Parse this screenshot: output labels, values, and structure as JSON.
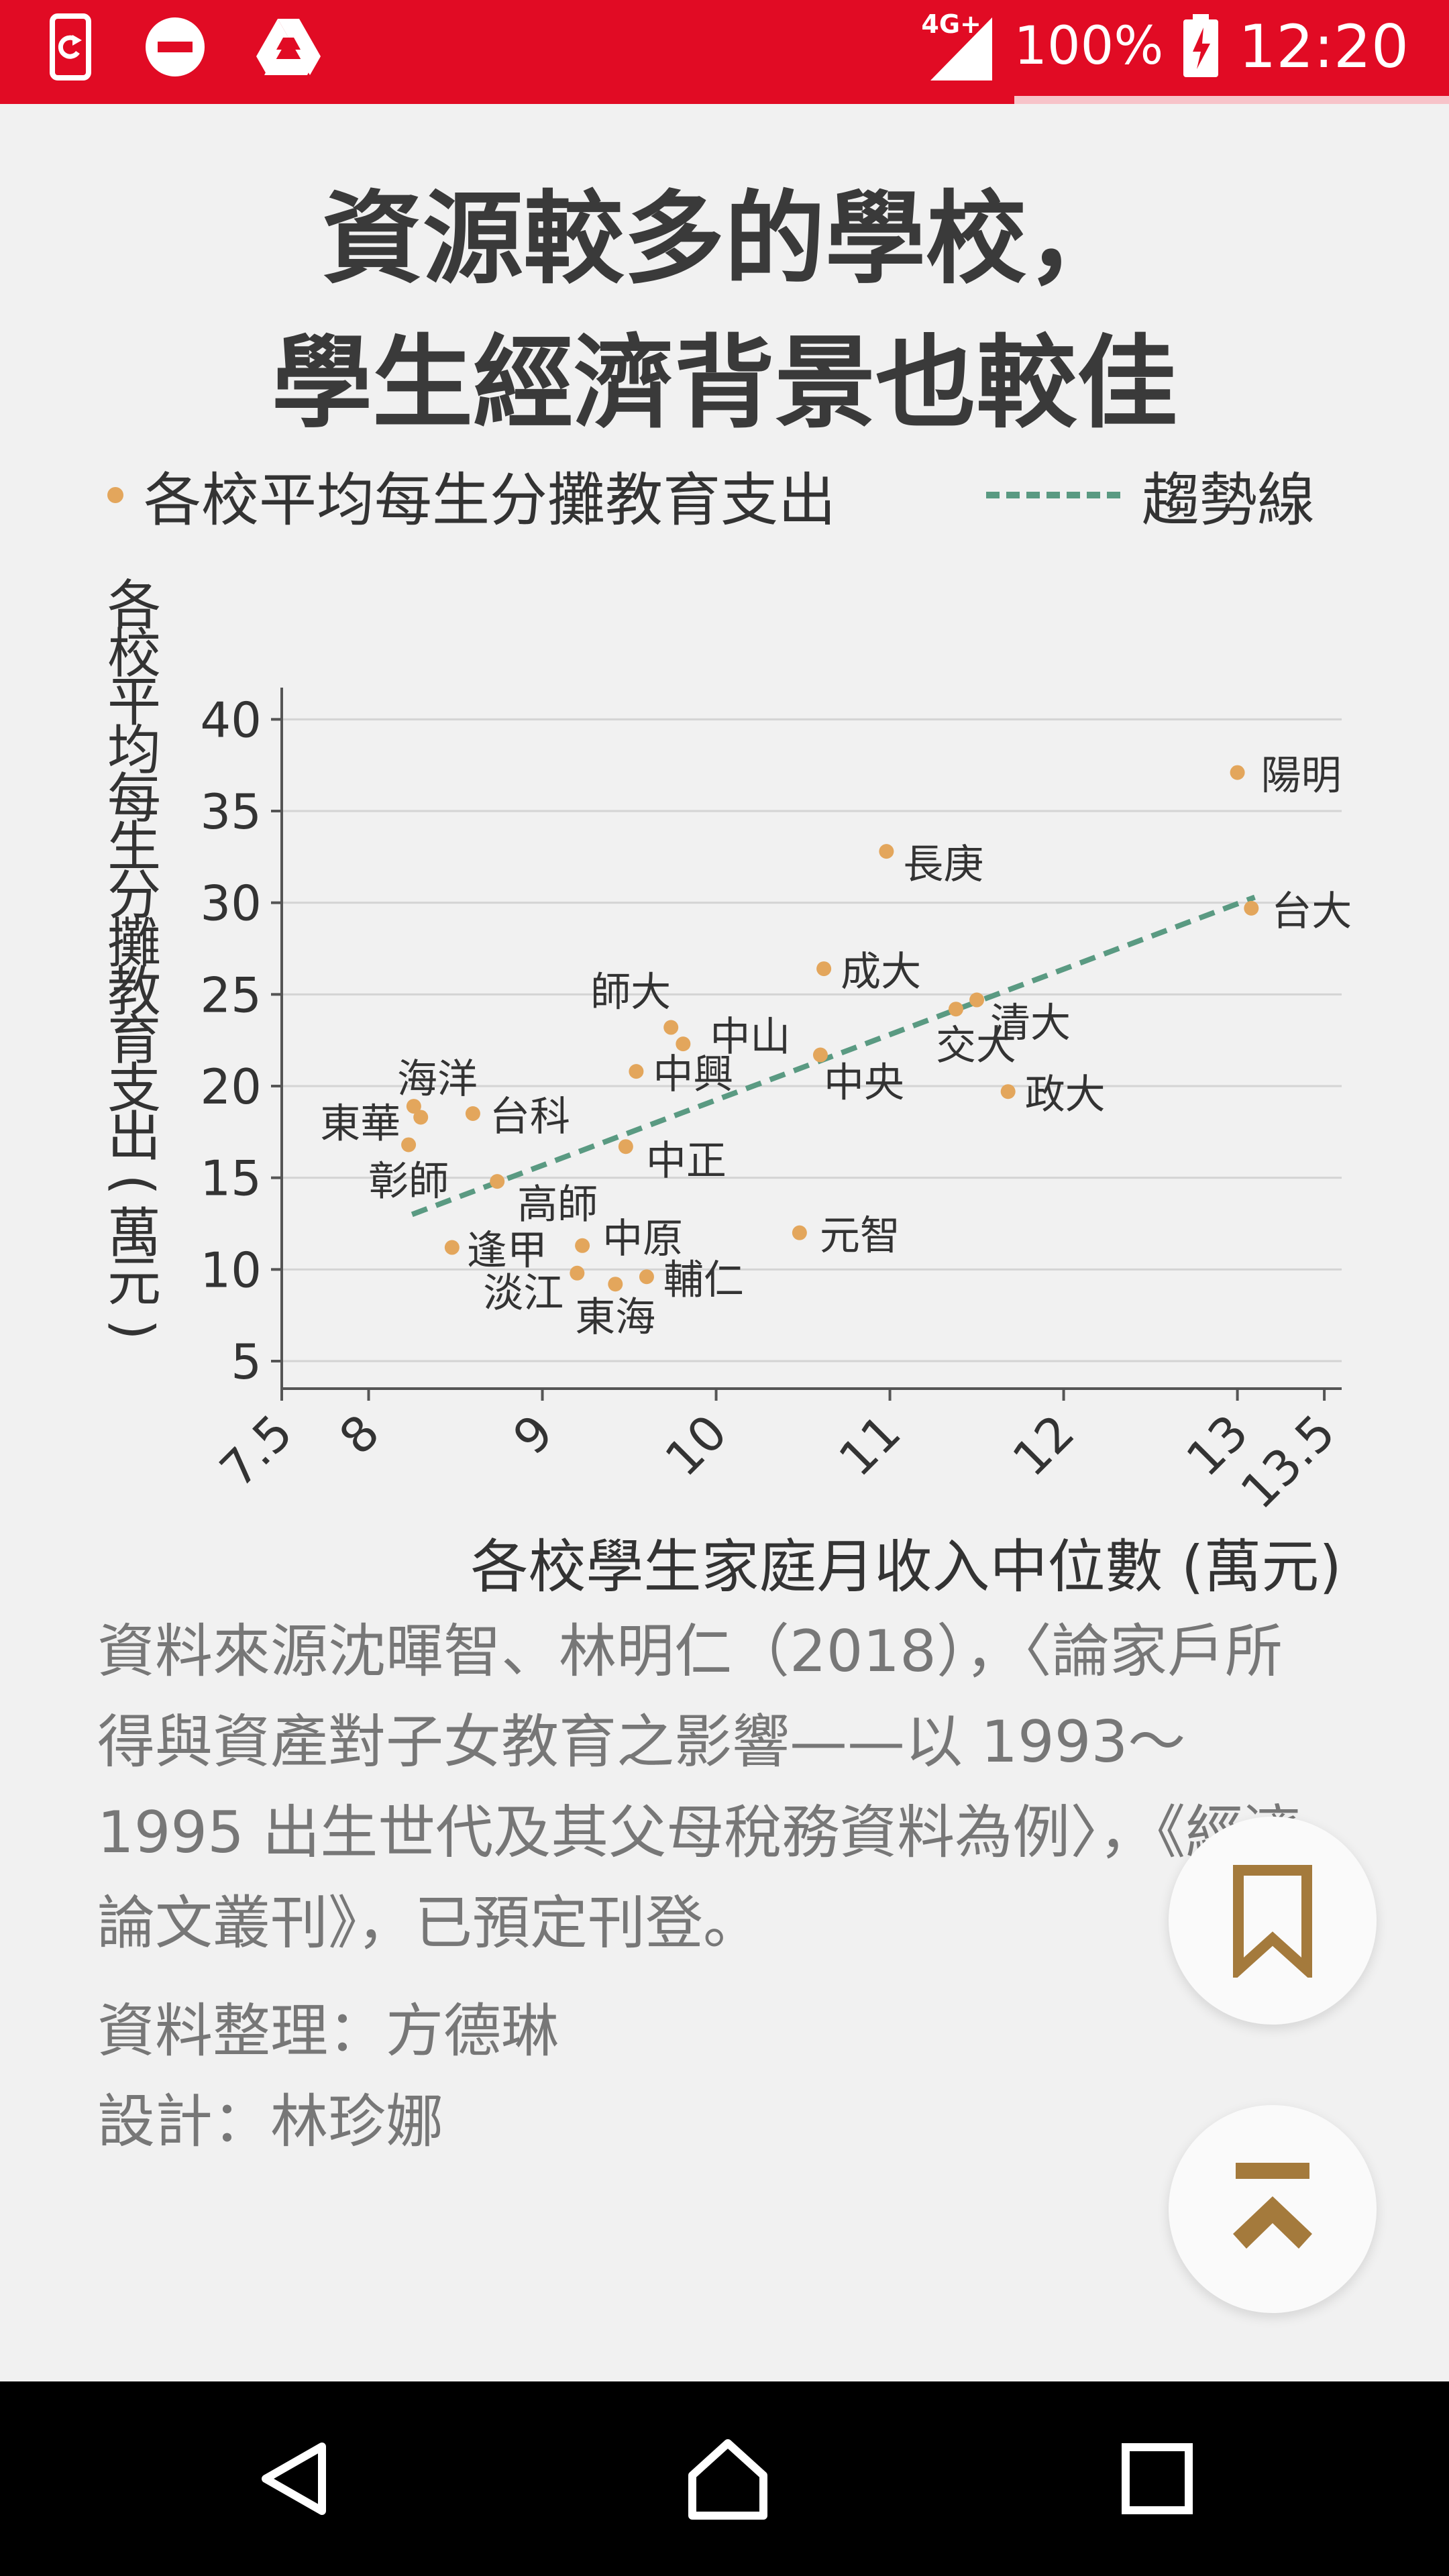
{
  "status_bar": {
    "network": "4G+",
    "battery": "100%",
    "time": "12:20",
    "icons": [
      "screen-record-icon",
      "do-not-disturb-icon",
      "google-drive-icon",
      "signal-icon",
      "battery-charging-icon"
    ]
  },
  "reading_progress": 0.7,
  "article": {
    "title_line1": "資源較多的學校，",
    "title_line2": "學生經濟背景也較佳",
    "source": "資料來源沈暉智、林明仁（2018），〈論家戶所得與資產對子女教育之影響——以 1993～1995 出生世代及其父母稅務資料為例〉，《經濟論文叢刊》，已預定刊登。",
    "compiled_by": "資料整理：方德琳",
    "design_by": "設計：林珍娜"
  },
  "chart_data": {
    "type": "scatter",
    "legend": {
      "points": "各校平均每生分攤教育支出",
      "trend": "趨勢線",
      "placement": "top"
    },
    "xlabel": "各校學生家庭月收入中位數 (萬元)",
    "ylabel": "各校平均每生分攤教育支出(萬元)",
    "xlim": [
      7.5,
      13.6
    ],
    "ylim": [
      3.5,
      41
    ],
    "xticks": [
      7.5,
      8,
      9,
      10,
      11,
      12,
      13,
      13.5
    ],
    "yticks": [
      5,
      10,
      15,
      20,
      25,
      30,
      35,
      40
    ],
    "grid": "horizontal",
    "colors": {
      "points": "#e3a65c",
      "trend": "#5a9a82"
    },
    "trend": {
      "x": [
        8.25,
        13.1
      ],
      "y": [
        13.0,
        30.3
      ]
    },
    "points": [
      {
        "label": "陽明",
        "x": 13.0,
        "y": 37.1
      },
      {
        "label": "長庚",
        "x": 10.98,
        "y": 32.8
      },
      {
        "label": "台大",
        "x": 13.08,
        "y": 29.7
      },
      {
        "label": "成大",
        "x": 10.62,
        "y": 26.4
      },
      {
        "label": "師大",
        "x": 9.74,
        "y": 23.2
      },
      {
        "label": "中山",
        "x": 9.81,
        "y": 22.3
      },
      {
        "label": "清大",
        "x": 11.5,
        "y": 24.7
      },
      {
        "label": "交大",
        "x": 11.38,
        "y": 24.2
      },
      {
        "label": "中央",
        "x": 10.6,
        "y": 21.7
      },
      {
        "label": "中興",
        "x": 9.54,
        "y": 20.8
      },
      {
        "label": "政大",
        "x": 11.68,
        "y": 19.7
      },
      {
        "label": "海洋",
        "x": 8.26,
        "y": 18.9
      },
      {
        "label": "東華",
        "x": 8.3,
        "y": 18.3
      },
      {
        "label": "台科",
        "x": 8.6,
        "y": 18.5
      },
      {
        "label": "彰師",
        "x": 8.23,
        "y": 16.8
      },
      {
        "label": "中正",
        "x": 9.48,
        "y": 16.7
      },
      {
        "label": "高師",
        "x": 8.74,
        "y": 14.8
      },
      {
        "label": "元智",
        "x": 10.48,
        "y": 12.0
      },
      {
        "label": "逢甲",
        "x": 8.48,
        "y": 11.2
      },
      {
        "label": "中原",
        "x": 9.23,
        "y": 11.3
      },
      {
        "label": "淡江",
        "x": 9.2,
        "y": 9.8
      },
      {
        "label": "東海",
        "x": 9.42,
        "y": 9.2
      },
      {
        "label": "輔仁",
        "x": 9.6,
        "y": 9.6
      }
    ]
  },
  "fabs": {
    "bookmark": "bookmark-icon",
    "back_to_top": "back-to-top-icon"
  },
  "nav": {
    "back": "back-icon",
    "home": "home-icon",
    "recents": "recents-icon"
  }
}
